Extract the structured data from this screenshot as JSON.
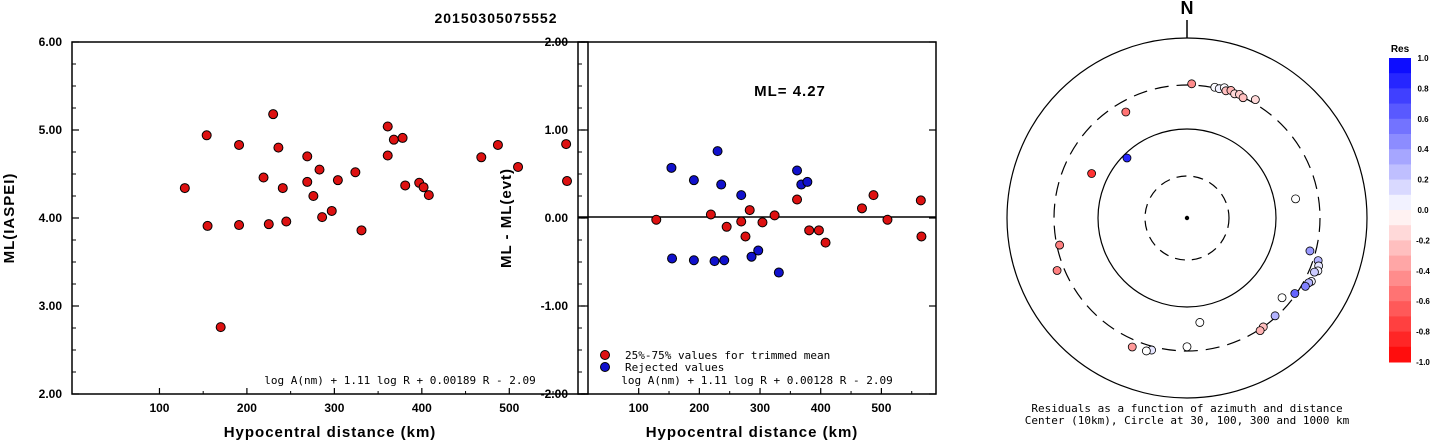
{
  "title": "20150305075552",
  "chart_data": [
    {
      "type": "scatter",
      "ylabel": "ML(IASPEI)",
      "xlabel": "Hypocentral distance (km)",
      "xlim": [
        0,
        590
      ],
      "ylim": [
        2.0,
        6.0
      ],
      "xticks": [
        "100",
        "200",
        "300",
        "400",
        "500"
      ],
      "yticks": [
        "2.00",
        "3.00",
        "4.00",
        "5.00",
        "6.00"
      ],
      "formula": "log A(nm) + 1.11 log R + 0.00189 R - 2.09",
      "series": [
        {
          "color": "#dd1111",
          "points": [
            [
              129,
              4.34
            ],
            [
              154,
              4.94
            ],
            [
              155,
              3.91
            ],
            [
              170,
              2.76
            ],
            [
              191,
              4.83
            ],
            [
              191,
              3.92
            ],
            [
              219,
              4.46
            ],
            [
              225,
              3.93
            ],
            [
              230,
              5.18
            ],
            [
              236,
              4.8
            ],
            [
              241,
              4.34
            ],
            [
              245,
              3.96
            ],
            [
              269,
              4.7
            ],
            [
              269,
              4.41
            ],
            [
              276,
              4.25
            ],
            [
              283,
              4.55
            ],
            [
              286,
              4.01
            ],
            [
              297,
              4.08
            ],
            [
              304,
              4.43
            ],
            [
              324,
              4.52
            ],
            [
              331,
              3.86
            ],
            [
              361,
              5.04
            ],
            [
              361,
              4.71
            ],
            [
              368,
              4.89
            ],
            [
              378,
              4.91
            ],
            [
              381,
              4.37
            ],
            [
              397,
              4.4
            ],
            [
              402,
              4.35
            ],
            [
              408,
              4.26
            ],
            [
              468,
              4.69
            ],
            [
              487,
              4.83
            ],
            [
              510,
              4.58
            ],
            [
              565,
              4.84
            ],
            [
              566,
              4.42
            ]
          ]
        }
      ]
    },
    {
      "type": "scatter",
      "ylabel": "ML - ML(evt)",
      "xlabel": "Hypocentral distance (km)",
      "xlim": [
        0,
        590
      ],
      "ylim": [
        -2.0,
        2.0
      ],
      "xticks": [
        "100",
        "200",
        "300",
        "400",
        "500"
      ],
      "yticks": [
        "-2.00",
        "-1.00",
        "0.00",
        "1.00",
        "2.00"
      ],
      "annotation": "ML= 4.27",
      "formula": "log A(nm) + 1.11 log R + 0.00128 R - 2.09",
      "legend": [
        "25%-75% values for trimmed mean",
        "Rejected values"
      ],
      "series": [
        {
          "name": "25%-75% values for trimmed mean",
          "color": "#dd1111",
          "points": [
            [
              129,
              -0.02
            ],
            [
              219,
              0.04
            ],
            [
              245,
              -0.1
            ],
            [
              269,
              -0.04
            ],
            [
              276,
              -0.21
            ],
            [
              283,
              0.09
            ],
            [
              304,
              -0.05
            ],
            [
              324,
              0.03
            ],
            [
              361,
              0.21
            ],
            [
              381,
              -0.14
            ],
            [
              397,
              -0.14
            ],
            [
              408,
              -0.28
            ],
            [
              468,
              0.11
            ],
            [
              487,
              0.26
            ],
            [
              510,
              -0.02
            ],
            [
              565,
              0.2
            ],
            [
              566,
              -0.21
            ]
          ]
        },
        {
          "name": "Rejected values",
          "color": "#1111cc",
          "points": [
            [
              154,
              0.57
            ],
            [
              155,
              -0.46
            ],
            [
              191,
              0.43
            ],
            [
              191,
              -0.48
            ],
            [
              225,
              -0.49
            ],
            [
              230,
              0.76
            ],
            [
              236,
              0.38
            ],
            [
              241,
              -0.48
            ],
            [
              269,
              0.26
            ],
            [
              286,
              -0.44
            ],
            [
              297,
              -0.37
            ],
            [
              331,
              -0.62
            ],
            [
              361,
              0.54
            ],
            [
              368,
              0.38
            ],
            [
              378,
              0.41
            ]
          ]
        }
      ]
    },
    {
      "type": "polar-scatter",
      "north_label": "N",
      "caption_line1": "Residuals as a function of azimuth and distance",
      "caption_line2": "Center (10km), Circle at 30, 100, 300 and 1000 km",
      "colorbar_title": "Res",
      "colorbar_ticks": [
        "1.0",
        "0.8",
        "0.6",
        "0.4",
        "0.2",
        "0.0",
        "-0.2",
        "-0.4",
        "-0.6",
        "-0.8",
        "-1.0"
      ],
      "points": [
        {
          "az": 2,
          "dist": 310,
          "res": -0.45
        },
        {
          "az": 12,
          "dist": 305,
          "res": 0.02
        },
        {
          "az": 14,
          "dist": 302,
          "res": 0.05
        },
        {
          "az": 16,
          "dist": 320,
          "res": 0.02
        },
        {
          "az": 17,
          "dist": 300,
          "res": -0.25
        },
        {
          "az": 19,
          "dist": 315,
          "res": -0.3
        },
        {
          "az": 21,
          "dist": 300,
          "res": -0.15
        },
        {
          "az": 23,
          "dist": 310,
          "res": -0.2
        },
        {
          "az": 25,
          "dist": 298,
          "res": -0.25
        },
        {
          "az": 30,
          "dist": 330,
          "res": -0.15
        },
        {
          "az": 80,
          "dist": 170,
          "res": 0.0
        },
        {
          "az": 105,
          "dist": 260,
          "res": 0.4
        },
        {
          "az": 108,
          "dist": 340,
          "res": 0.3
        },
        {
          "az": 110,
          "dist": 360,
          "res": 0.1
        },
        {
          "az": 112,
          "dist": 370,
          "res": 0.05
        },
        {
          "az": 113,
          "dist": 345,
          "res": 0.2
        },
        {
          "az": 117,
          "dist": 355,
          "res": 0.05
        },
        {
          "az": 118,
          "dist": 340,
          "res": 0.3
        },
        {
          "az": 120,
          "dist": 330,
          "res": 0.5
        },
        {
          "az": 125,
          "dist": 290,
          "res": 0.6
        },
        {
          "az": 130,
          "dist": 240,
          "res": 0.0
        },
        {
          "az": 138,
          "dist": 290,
          "res": 0.3
        },
        {
          "az": 145,
          "dist": 300,
          "res": -0.25
        },
        {
          "az": 147,
          "dist": 310,
          "res": -0.3
        },
        {
          "az": 173,
          "dist": 150,
          "res": 0.0
        },
        {
          "az": 180,
          "dist": 270,
          "res": 0.0
        },
        {
          "az": 195,
          "dist": 330,
          "res": 0.1
        },
        {
          "az": 197,
          "dist": 350,
          "res": 0.0
        },
        {
          "az": 203,
          "dist": 360,
          "res": -0.4
        },
        {
          "az": 248,
          "dist": 360,
          "res": -0.5
        },
        {
          "az": 258,
          "dist": 280,
          "res": -0.5
        },
        {
          "az": 295,
          "dist": 150,
          "res": -0.8
        },
        {
          "az": 315,
          "dist": 90,
          "res": 0.85
        },
        {
          "az": 330,
          "dist": 230,
          "res": -0.55
        }
      ]
    }
  ]
}
